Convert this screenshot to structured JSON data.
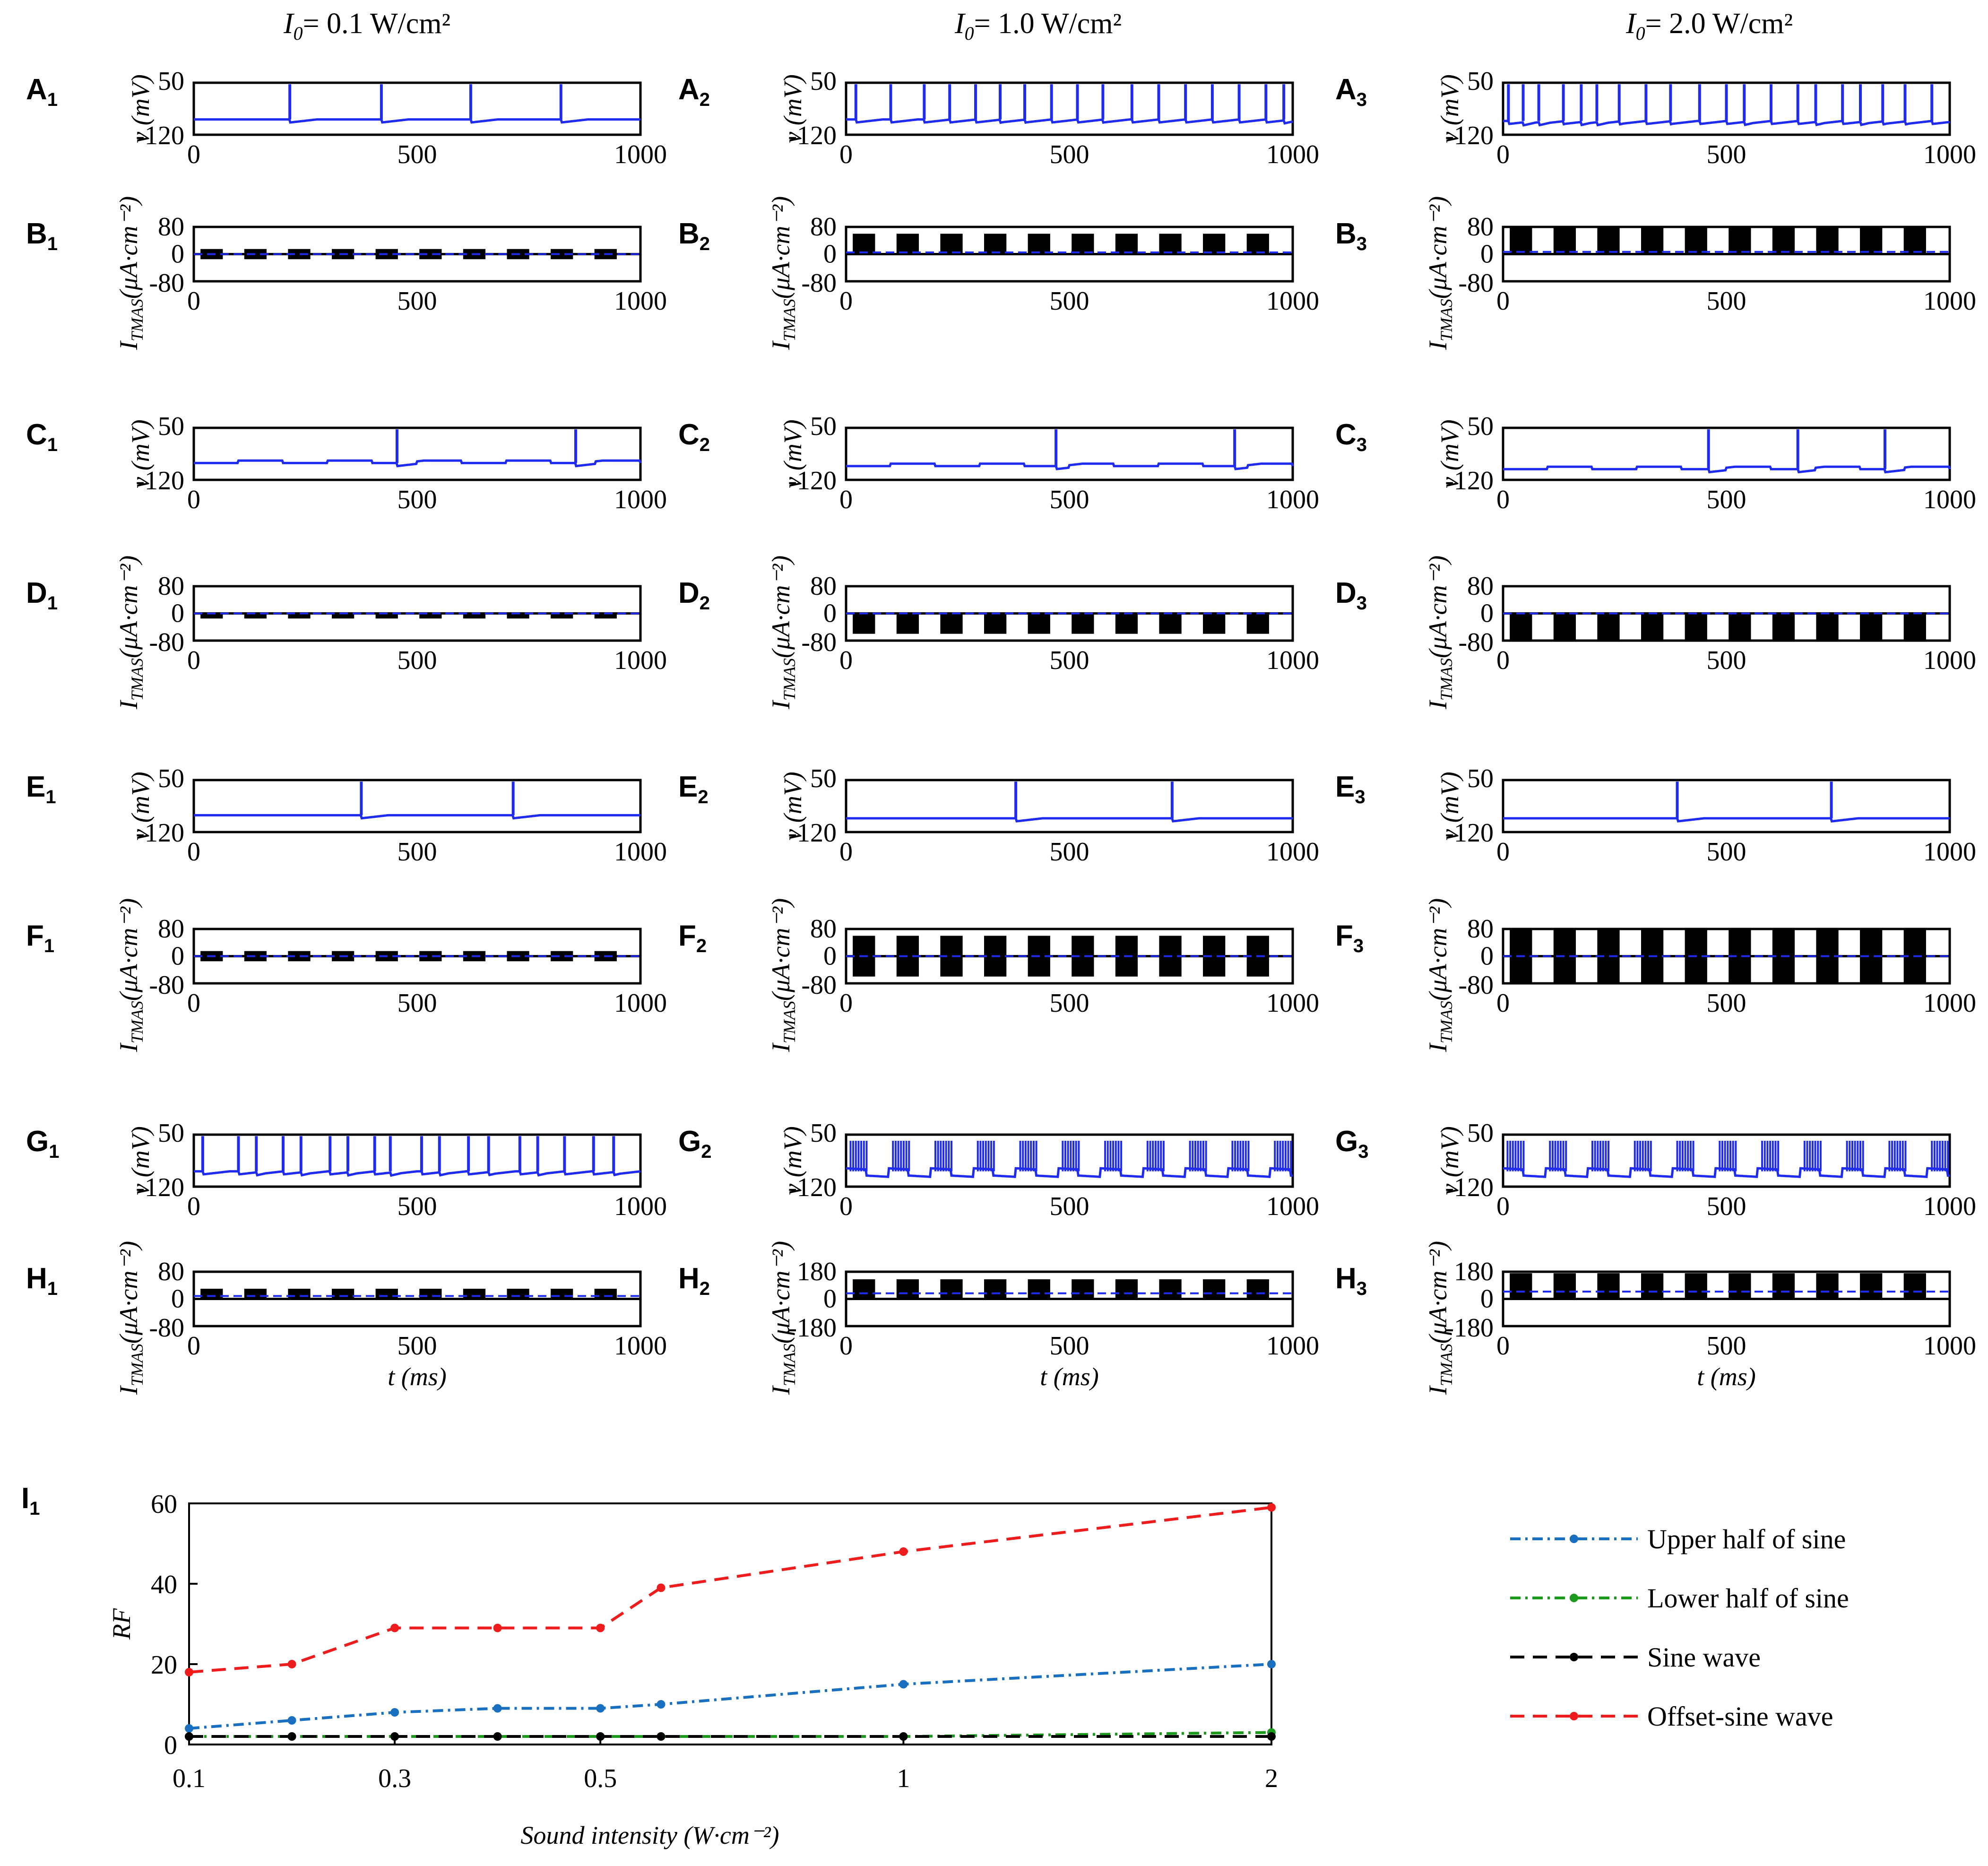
{
  "headers": [
    {
      "pre": "I",
      "sub": "0",
      "post": "= 0.1 W/cm²"
    },
    {
      "pre": "I",
      "sub": "0",
      "post": "= 1.0 W/cm²"
    },
    {
      "pre": "I",
      "sub": "0",
      "post": "= 2.0 W/cm²"
    }
  ],
  "time_ticks": [
    "0",
    "500",
    "1000"
  ],
  "v_axis": {
    "label": "v (mV)",
    "ticks": [
      "50",
      "-120"
    ],
    "ylim": [
      -120,
      50
    ]
  },
  "i_axis": {
    "label_main": "I",
    "label_sub": "TMAS",
    "label_unit": "(μA·cm⁻²)",
    "ticks_80": [
      "80",
      "0",
      "-80"
    ],
    "ticks_180": [
      "180",
      "0",
      "-180"
    ]
  },
  "time_xlabel": "t (ms)",
  "colors": {
    "membrane": "#1f2cf0",
    "current": "#000000",
    "dashed": "#1f2cf0",
    "upper": "#1a70c0",
    "lower": "#1c9a1c",
    "sine": "#000000",
    "offset": "#ee1c1c"
  },
  "panels": [
    {
      "letter": "A",
      "sub": "1",
      "kind": "v",
      "row": 0,
      "col": 0,
      "spikes": [
        215,
        420,
        620,
        822
      ],
      "base": -70
    },
    {
      "letter": "A",
      "sub": "2",
      "kind": "v",
      "row": 0,
      "col": 1,
      "spikes": [
        22,
        100,
        175,
        232,
        290,
        345,
        400,
        460,
        518,
        575,
        640,
        700,
        760,
        820,
        880,
        940,
        980
      ],
      "base": -70
    },
    {
      "letter": "A",
      "sub": "3",
      "kind": "v",
      "row": 0,
      "col": 2,
      "spikes": [
        12,
        45,
        80,
        135,
        175,
        210,
        260,
        320,
        375,
        440,
        500,
        540,
        600,
        660,
        700,
        760,
        800,
        850,
        900,
        960
      ],
      "base": -75
    },
    {
      "letter": "B",
      "sub": "1",
      "kind": "i",
      "row": 1,
      "col": 0,
      "amp": 15,
      "mode": "sym",
      "scale": 80
    },
    {
      "letter": "B",
      "sub": "2",
      "kind": "i",
      "row": 1,
      "col": 1,
      "amp": 60,
      "mode": "upper",
      "scale": 80
    },
    {
      "letter": "B",
      "sub": "3",
      "kind": "i",
      "row": 1,
      "col": 2,
      "amp": 80,
      "mode": "upper",
      "scale": 80
    },
    {
      "letter": "C",
      "sub": "1",
      "kind": "v",
      "row": 2,
      "col": 0,
      "spikes": [
        455,
        855
      ],
      "base": -65,
      "steps": true
    },
    {
      "letter": "C",
      "sub": "2",
      "kind": "v",
      "row": 2,
      "col": 1,
      "spikes": [
        470,
        870
      ],
      "base": -75,
      "steps": true
    },
    {
      "letter": "C",
      "sub": "3",
      "kind": "v",
      "row": 2,
      "col": 2,
      "spikes": [
        460,
        660,
        855
      ],
      "base": -85,
      "steps": true
    },
    {
      "letter": "D",
      "sub": "1",
      "kind": "i",
      "row": 3,
      "col": 0,
      "amp": 15,
      "mode": "lower",
      "scale": 80
    },
    {
      "letter": "D",
      "sub": "2",
      "kind": "i",
      "row": 3,
      "col": 1,
      "amp": 60,
      "mode": "lower",
      "scale": 80
    },
    {
      "letter": "D",
      "sub": "3",
      "kind": "i",
      "row": 3,
      "col": 2,
      "amp": 80,
      "mode": "lower",
      "scale": 80
    },
    {
      "letter": "E",
      "sub": "1",
      "kind": "v",
      "row": 4,
      "col": 0,
      "spikes": [
        375,
        715
      ],
      "base": -65
    },
    {
      "letter": "E",
      "sub": "2",
      "kind": "v",
      "row": 4,
      "col": 1,
      "spikes": [
        380,
        730
      ],
      "base": -75
    },
    {
      "letter": "E",
      "sub": "3",
      "kind": "v",
      "row": 4,
      "col": 2,
      "spikes": [
        390,
        735
      ],
      "base": -75
    },
    {
      "letter": "F",
      "sub": "1",
      "kind": "i",
      "row": 5,
      "col": 0,
      "amp": 15,
      "mode": "sym",
      "scale": 80
    },
    {
      "letter": "F",
      "sub": "2",
      "kind": "i",
      "row": 5,
      "col": 1,
      "amp": 60,
      "mode": "sym",
      "scale": 80
    },
    {
      "letter": "F",
      "sub": "3",
      "kind": "i",
      "row": 5,
      "col": 2,
      "amp": 80,
      "mode": "sym",
      "scale": 80
    },
    {
      "letter": "G",
      "sub": "1",
      "kind": "v",
      "row": 6,
      "col": 0,
      "spikes": [
        20,
        100,
        140,
        200,
        240,
        305,
        345,
        405,
        440,
        510,
        550,
        615,
        660,
        730,
        770,
        830,
        895,
        940
      ],
      "base": -70
    },
    {
      "letter": "G",
      "sub": "2",
      "kind": "v",
      "row": 6,
      "col": 1,
      "spikes": [],
      "base": -80,
      "burst": true
    },
    {
      "letter": "G",
      "sub": "3",
      "kind": "v",
      "row": 6,
      "col": 2,
      "spikes": [],
      "base": -80,
      "burst": true
    },
    {
      "letter": "H",
      "sub": "1",
      "kind": "i",
      "row": 7,
      "col": 0,
      "amp": 30,
      "mode": "offset",
      "scale": 80
    },
    {
      "letter": "H",
      "sub": "2",
      "kind": "i",
      "row": 7,
      "col": 1,
      "amp": 130,
      "mode": "offset",
      "scale": 180
    },
    {
      "letter": "H",
      "sub": "3",
      "kind": "i",
      "row": 7,
      "col": 2,
      "amp": 170,
      "mode": "offset",
      "scale": 180
    }
  ],
  "panel_I": {
    "letter": "I",
    "sub": "1"
  },
  "chart_data": {
    "type": "line",
    "title": "",
    "xlabel": "Sound intensity (W·cm⁻²)",
    "ylabel": "RF",
    "x": [
      0.1,
      0.2,
      0.3,
      0.4,
      0.5,
      0.6,
      1.0,
      2.0
    ],
    "xticks": [
      "0.1",
      "0.3",
      "0.5",
      "1",
      "2"
    ],
    "xtick_values": [
      0.1,
      0.3,
      0.5,
      1,
      2
    ],
    "yticks": [
      "0",
      "20",
      "40",
      "60"
    ],
    "ylim": [
      0,
      60
    ],
    "legend_position": "right",
    "series": [
      {
        "name": "Upper half of sine",
        "values": [
          4,
          6,
          8,
          9,
          9,
          10,
          15,
          20
        ],
        "color": "#1a70c0",
        "dash": "dashdot"
      },
      {
        "name": "Lower half of  sine",
        "values": [
          2,
          2,
          2,
          2,
          2,
          2,
          2,
          3
        ],
        "color": "#1c9a1c",
        "dash": "dashdot"
      },
      {
        "name": "Sine wave",
        "values": [
          2,
          2,
          2,
          2,
          2,
          2,
          2,
          2
        ],
        "color": "#000000",
        "dash": "dash"
      },
      {
        "name": "Offset-sine wave",
        "values": [
          18,
          20,
          29,
          29,
          29,
          39,
          48,
          59
        ],
        "color": "#ee1c1c",
        "dash": "dash"
      }
    ]
  }
}
